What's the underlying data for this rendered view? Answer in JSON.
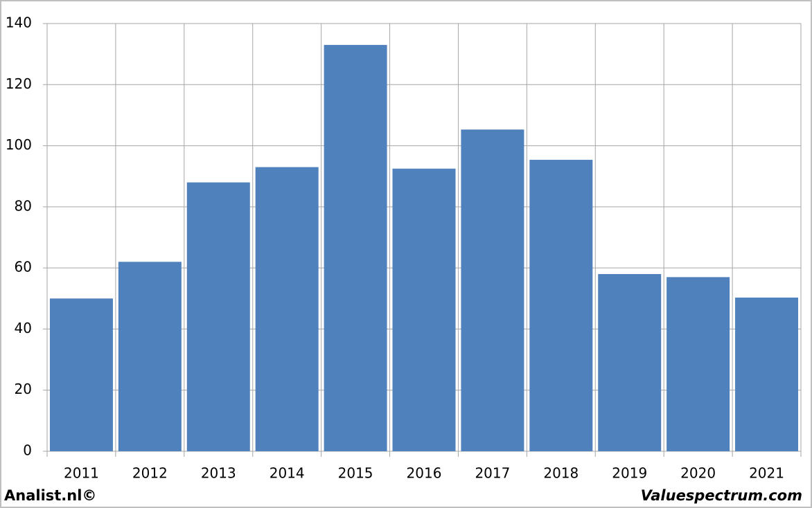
{
  "chart_data": {
    "type": "bar",
    "categories": [
      "2011",
      "2012",
      "2013",
      "2014",
      "2015",
      "2016",
      "2017",
      "2018",
      "2019",
      "2020",
      "2021"
    ],
    "values": [
      50,
      62,
      88,
      93,
      133,
      92.5,
      105.3,
      95.4,
      58,
      57,
      50.3
    ],
    "color": "#4f81bd",
    "ylim": [
      0,
      140
    ],
    "yticks": [
      0,
      20,
      40,
      60,
      80,
      100,
      120,
      140
    ],
    "grid": true
  },
  "footer": {
    "left": "Analist.nl©",
    "right": "Valuespectrum.com"
  }
}
